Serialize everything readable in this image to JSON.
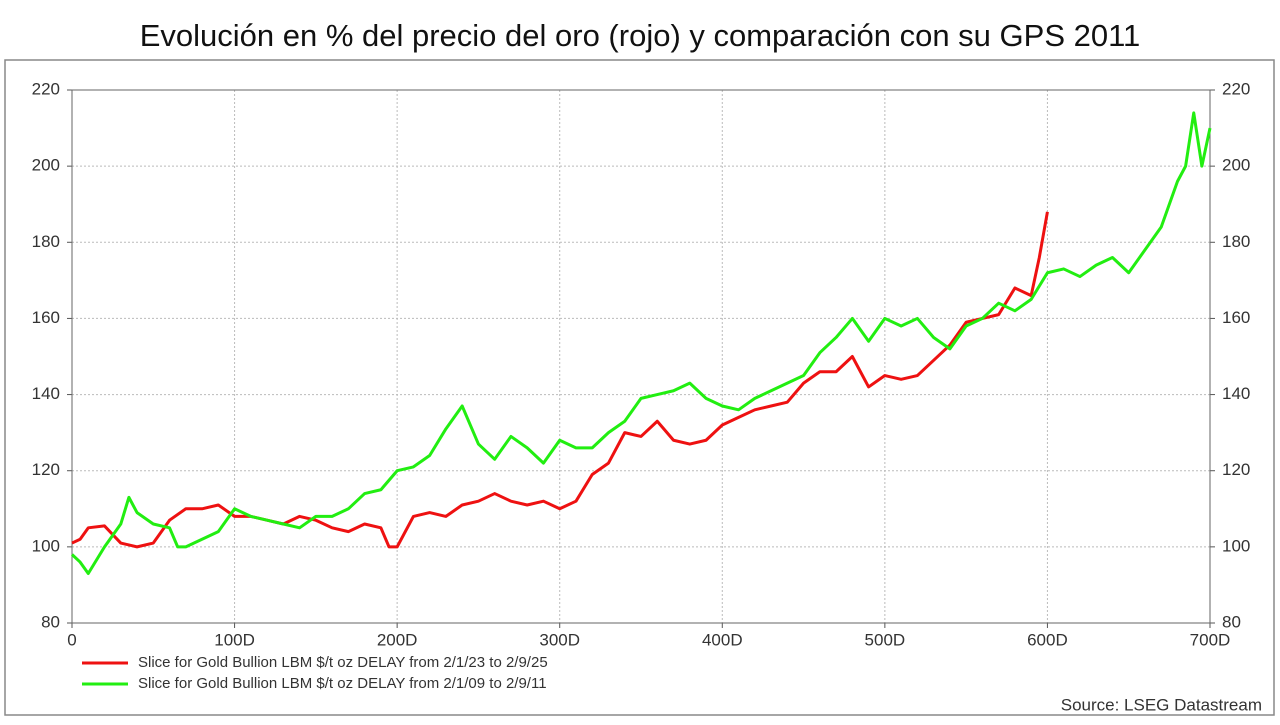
{
  "chart_data": {
    "type": "line",
    "title": "Evolución en % del precio del oro (rojo) y comparación con su GPS 2011",
    "source": "Source: LSEG Datastream",
    "xlim": [
      0,
      700
    ],
    "xticks": [
      0,
      {
        "value": 100,
        "label": "100D"
      },
      {
        "value": 200,
        "label": "200D"
      },
      {
        "value": 300,
        "label": "300D"
      },
      {
        "value": 400,
        "label": "400D"
      },
      {
        "value": 500,
        "label": "500D"
      },
      {
        "value": 600,
        "label": "600D"
      },
      {
        "value": 700,
        "label": "700D"
      }
    ],
    "ylim": [
      80,
      220
    ],
    "yticks": [
      80,
      100,
      120,
      140,
      160,
      180,
      200,
      220
    ],
    "y2lim": [
      80,
      220
    ],
    "y2ticks": [
      80,
      100,
      120,
      140,
      160,
      180,
      200,
      220
    ],
    "grid": true,
    "legend": "bottom-left",
    "series": [
      {
        "name": "Slice for Gold Bullion LBM $/t oz DELAY from 2/1/23 to 2/9/25",
        "color": "#ee1111",
        "x": [
          0,
          5,
          10,
          20,
          30,
          40,
          50,
          60,
          70,
          80,
          90,
          100,
          110,
          120,
          130,
          140,
          150,
          160,
          170,
          180,
          190,
          195,
          200,
          210,
          220,
          230,
          240,
          250,
          260,
          270,
          280,
          290,
          300,
          310,
          320,
          330,
          340,
          350,
          360,
          370,
          380,
          390,
          400,
          410,
          420,
          430,
          440,
          450,
          460,
          470,
          480,
          490,
          500,
          510,
          520,
          530,
          540,
          550,
          560,
          570,
          580,
          590,
          595,
          600
        ],
        "values": [
          101,
          102,
          105,
          105.5,
          101,
          100,
          101,
          107,
          110,
          110,
          111,
          108,
          108,
          107,
          106,
          108,
          107,
          105,
          104,
          106,
          105,
          100,
          100,
          108,
          109,
          108,
          111,
          112,
          114,
          112,
          111,
          112,
          110,
          112,
          119,
          122,
          130,
          129,
          133,
          128,
          127,
          128,
          132,
          134,
          136,
          137,
          138,
          143,
          146,
          146,
          150,
          142,
          145,
          144,
          145,
          149,
          153,
          159,
          160,
          161,
          168,
          166,
          176,
          188
        ]
      },
      {
        "name": "Slice for Gold Bullion LBM $/t oz DELAY from 2/1/09 to 2/9/11",
        "color": "#22ee11",
        "x": [
          0,
          5,
          10,
          20,
          30,
          35,
          40,
          50,
          60,
          65,
          70,
          80,
          90,
          100,
          110,
          120,
          130,
          140,
          150,
          160,
          170,
          180,
          190,
          200,
          210,
          220,
          230,
          240,
          250,
          260,
          270,
          280,
          290,
          300,
          310,
          320,
          330,
          340,
          350,
          360,
          370,
          380,
          390,
          400,
          410,
          420,
          430,
          440,
          450,
          460,
          470,
          480,
          490,
          500,
          510,
          520,
          530,
          540,
          550,
          560,
          570,
          580,
          590,
          600,
          610,
          620,
          630,
          640,
          650,
          660,
          670,
          680,
          685,
          690,
          695,
          700
        ],
        "values": [
          98,
          96,
          93,
          100,
          106,
          113,
          109,
          106,
          105,
          100,
          100,
          102,
          104,
          110,
          108,
          107,
          106,
          105,
          108,
          108,
          110,
          114,
          115,
          120,
          121,
          124,
          131,
          137,
          127,
          123,
          129,
          126,
          122,
          128,
          126,
          126,
          130,
          133,
          139,
          140,
          141,
          143,
          139,
          137,
          136,
          139,
          141,
          143,
          145,
          151,
          155,
          160,
          154,
          160,
          158,
          160,
          155,
          152,
          158,
          160,
          164,
          162,
          165,
          172,
          173,
          171,
          174,
          176,
          172,
          178,
          184,
          196,
          200,
          214,
          200,
          210
        ]
      }
    ]
  }
}
